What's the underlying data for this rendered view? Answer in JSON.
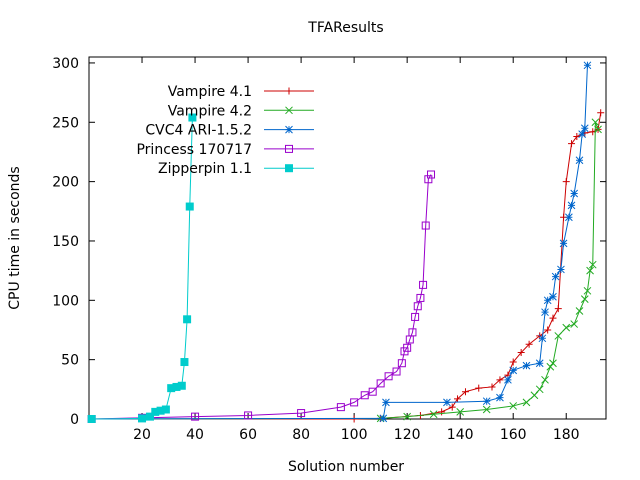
{
  "chart_data": {
    "type": "line",
    "title": "TFAResults",
    "xlabel": "Solution number",
    "ylabel": "CPU time in seconds",
    "xlim": [
      0,
      195
    ],
    "ylim": [
      0,
      305
    ],
    "xticks": [
      20,
      40,
      60,
      80,
      100,
      120,
      140,
      160,
      180
    ],
    "yticks": [
      0,
      50,
      100,
      150,
      200,
      250,
      300
    ],
    "grid": false,
    "legend_position": "top-left",
    "series": [
      {
        "name": "Vampire 4.1",
        "color": "#cc0000",
        "marker": "plus",
        "points": [
          [
            1,
            0
          ],
          [
            100,
            0
          ],
          [
            110,
            0.5
          ],
          [
            125,
            3
          ],
          [
            133,
            6
          ],
          [
            137,
            10
          ],
          [
            139,
            17
          ],
          [
            142,
            23
          ],
          [
            147,
            26
          ],
          [
            152,
            27
          ],
          [
            155,
            33
          ],
          [
            158,
            37
          ],
          [
            160,
            48
          ],
          [
            163,
            56
          ],
          [
            166,
            63
          ],
          [
            170,
            70
          ],
          [
            173,
            75
          ],
          [
            175,
            85
          ],
          [
            177,
            93
          ],
          [
            179,
            170
          ],
          [
            180,
            200
          ],
          [
            182,
            232
          ],
          [
            184,
            238
          ],
          [
            187,
            241
          ],
          [
            190,
            242
          ],
          [
            192,
            244
          ],
          [
            193,
            258
          ]
        ]
      },
      {
        "name": "Vampire 4.2",
        "color": "#22aa22",
        "marker": "x",
        "points": [
          [
            1,
            0
          ],
          [
            110,
            0.5
          ],
          [
            120,
            2
          ],
          [
            130,
            4
          ],
          [
            140,
            6
          ],
          [
            150,
            8
          ],
          [
            160,
            11
          ],
          [
            165,
            14
          ],
          [
            168,
            20
          ],
          [
            170,
            25
          ],
          [
            172,
            33
          ],
          [
            174,
            44
          ],
          [
            175,
            47
          ],
          [
            177,
            70
          ],
          [
            180,
            77
          ],
          [
            183,
            80
          ],
          [
            185,
            91
          ],
          [
            187,
            101
          ],
          [
            188,
            108
          ],
          [
            189,
            125
          ],
          [
            190,
            130
          ],
          [
            191,
            250
          ],
          [
            192,
            244
          ]
        ]
      },
      {
        "name": "CVC4 ARI-1.5.2",
        "color": "#0066cc",
        "marker": "star",
        "points": [
          [
            1,
            0
          ],
          [
            111,
            0.5
          ],
          [
            112,
            14
          ],
          [
            135,
            14
          ],
          [
            150,
            15
          ],
          [
            155,
            18
          ],
          [
            158,
            33
          ],
          [
            160,
            41
          ],
          [
            165,
            45
          ],
          [
            170,
            47
          ],
          [
            171,
            68
          ],
          [
            172,
            90
          ],
          [
            173,
            100
          ],
          [
            175,
            103
          ],
          [
            176,
            120
          ],
          [
            178,
            126
          ],
          [
            179,
            148
          ],
          [
            181,
            170
          ],
          [
            182,
            180
          ],
          [
            183,
            190
          ],
          [
            185,
            218
          ],
          [
            186,
            240
          ],
          [
            187,
            245
          ],
          [
            188,
            298
          ]
        ]
      },
      {
        "name": "Princess 170717",
        "color": "#9900cc",
        "marker": "square",
        "points": [
          [
            1,
            0
          ],
          [
            20,
            1
          ],
          [
            40,
            2
          ],
          [
            60,
            3
          ],
          [
            80,
            5
          ],
          [
            95,
            10
          ],
          [
            100,
            14
          ],
          [
            104,
            20
          ],
          [
            107,
            23
          ],
          [
            110,
            30
          ],
          [
            113,
            36
          ],
          [
            116,
            40
          ],
          [
            118,
            47
          ],
          [
            119,
            57
          ],
          [
            120,
            60
          ],
          [
            121,
            67
          ],
          [
            122,
            73
          ],
          [
            123,
            86
          ],
          [
            124,
            95
          ],
          [
            125,
            102
          ],
          [
            126,
            113
          ],
          [
            127,
            163
          ],
          [
            128,
            202
          ],
          [
            129,
            206
          ]
        ]
      },
      {
        "name": "Zipperpin 1.1",
        "color": "#00cccc",
        "marker": "filled-square",
        "points": [
          [
            1,
            0
          ],
          [
            20,
            0.5
          ],
          [
            23,
            2
          ],
          [
            25,
            6
          ],
          [
            27,
            7
          ],
          [
            29,
            8
          ],
          [
            31,
            26
          ],
          [
            33,
            27
          ],
          [
            35,
            28
          ],
          [
            36,
            48
          ],
          [
            37,
            84
          ],
          [
            38,
            179
          ],
          [
            39,
            254
          ]
        ]
      }
    ]
  }
}
